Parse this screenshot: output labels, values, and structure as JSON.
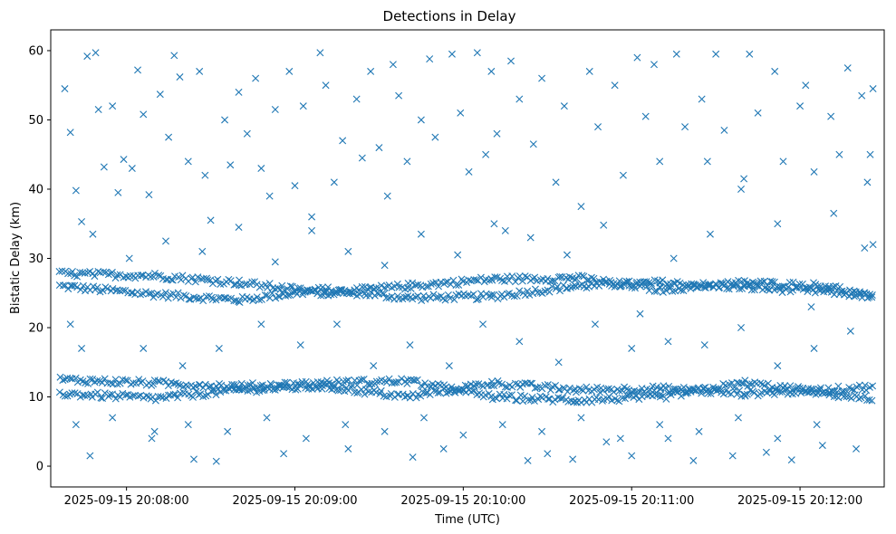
{
  "chart_data": {
    "type": "scatter",
    "title": "Detections in Delay",
    "xlabel": "Time (UTC)",
    "ylabel": "Bistatic Delay (km)",
    "marker": "x",
    "color": "#1f77b4",
    "grid": false,
    "xlim": [
      "2025-09-15 20:07:33",
      "2025-09-15 20:12:30"
    ],
    "ylim": [
      -3,
      63
    ],
    "x_ticks": [
      "2025-09-15 20:08:00",
      "2025-09-15 20:09:00",
      "2025-09-15 20:10:00",
      "2025-09-15 20:11:00",
      "2025-09-15 20:12:00"
    ],
    "y_ticks": [
      0,
      10,
      20,
      30,
      40,
      50,
      60
    ],
    "series": [
      {
        "points_note": "",
        "tracks": [
          {
            "x": [
              "2025-09-15 20:07:36",
              "2025-09-15 20:08:10",
              "2025-09-15 20:08:40",
              "2025-09-15 20:09:10",
              "2025-09-15 20:09:40",
              "2025-09-15 20:10:10",
              "2025-09-15 20:10:40",
              "2025-09-15 20:11:10",
              "2025-09-15 20:11:40",
              "2025-09-15 20:12:10",
              "2025-09-15 20:12:26"
            ],
            "y": [
              26.0,
              24.8,
              24.0,
              25.5,
              24.3,
              24.5,
              26.0,
              26.5,
              25.8,
              25.2,
              24.5
            ]
          },
          {
            "x": [
              "2025-09-15 20:07:36",
              "2025-09-15 20:08:10",
              "2025-09-15 20:08:40",
              "2025-09-15 20:09:10",
              "2025-09-15 20:09:40",
              "2025-09-15 20:10:10",
              "2025-09-15 20:10:40",
              "2025-09-15 20:11:10",
              "2025-09-15 20:11:40",
              "2025-09-15 20:12:10",
              "2025-09-15 20:12:26"
            ],
            "y": [
              27.8,
              27.5,
              26.5,
              25.0,
              26.0,
              27.0,
              27.2,
              25.5,
              26.5,
              26.0,
              24.2
            ]
          },
          {
            "x": [
              "2025-09-15 20:07:36",
              "2025-09-15 20:08:10",
              "2025-09-15 20:08:40",
              "2025-09-15 20:09:10",
              "2025-09-15 20:09:40",
              "2025-09-15 20:10:10",
              "2025-09-15 20:10:40",
              "2025-09-15 20:11:10",
              "2025-09-15 20:11:40",
              "2025-09-15 20:12:10",
              "2025-09-15 20:12:26"
            ],
            "y": [
              10.5,
              9.8,
              11.0,
              11.5,
              10.0,
              12.0,
              11.0,
              11.2,
              10.5,
              11.0,
              11.5
            ]
          },
          {
            "x": [
              "2025-09-15 20:07:36",
              "2025-09-15 20:08:10",
              "2025-09-15 20:08:40",
              "2025-09-15 20:09:10",
              "2025-09-15 20:09:40",
              "2025-09-15 20:10:10",
              "2025-09-15 20:10:40",
              "2025-09-15 20:11:10",
              "2025-09-15 20:11:40",
              "2025-09-15 20:12:10",
              "2025-09-15 20:12:26"
            ],
            "y": [
              12.5,
              12.0,
              11.5,
              12.0,
              12.3,
              10.0,
              9.5,
              10.0,
              12.0,
              10.5,
              9.5
            ]
          }
        ],
        "scatter_points": [
          [
            "2025-09-15 20:07:38",
            54.5
          ],
          [
            "2025-09-15 20:07:40",
            48.2
          ],
          [
            "2025-09-15 20:07:42",
            39.8
          ],
          [
            "2025-09-15 20:07:44",
            35.3
          ],
          [
            "2025-09-15 20:07:46",
            59.2
          ],
          [
            "2025-09-15 20:07:47",
            1.5
          ],
          [
            "2025-09-15 20:07:49",
            59.7
          ],
          [
            "2025-09-15 20:07:50",
            51.5
          ],
          [
            "2025-09-15 20:07:52",
            43.2
          ],
          [
            "2025-09-15 20:07:55",
            52.0
          ],
          [
            "2025-09-15 20:07:57",
            39.5
          ],
          [
            "2025-09-15 20:07:59",
            44.3
          ],
          [
            "2025-09-15 20:08:02",
            43.0
          ],
          [
            "2025-09-15 20:08:04",
            57.2
          ],
          [
            "2025-09-15 20:08:06",
            50.8
          ],
          [
            "2025-09-15 20:08:08",
            39.2
          ],
          [
            "2025-09-15 20:08:10",
            5.0
          ],
          [
            "2025-09-15 20:08:12",
            53.7
          ],
          [
            "2025-09-15 20:08:15",
            47.5
          ],
          [
            "2025-09-15 20:08:17",
            59.3
          ],
          [
            "2025-09-15 20:08:19",
            56.2
          ],
          [
            "2025-09-15 20:08:22",
            44.0
          ],
          [
            "2025-09-15 20:08:24",
            1.0
          ],
          [
            "2025-09-15 20:08:26",
            57.0
          ],
          [
            "2025-09-15 20:08:28",
            42.0
          ],
          [
            "2025-09-15 20:08:30",
            35.5
          ],
          [
            "2025-09-15 20:08:32",
            0.7
          ],
          [
            "2025-09-15 20:08:35",
            50.0
          ],
          [
            "2025-09-15 20:08:37",
            43.5
          ],
          [
            "2025-09-15 20:08:40",
            54.0
          ],
          [
            "2025-09-15 20:08:43",
            48.0
          ],
          [
            "2025-09-15 20:08:46",
            56.0
          ],
          [
            "2025-09-15 20:08:48",
            43.0
          ],
          [
            "2025-09-15 20:08:51",
            39.0
          ],
          [
            "2025-09-15 20:08:53",
            51.5
          ],
          [
            "2025-09-15 20:08:56",
            1.8
          ],
          [
            "2025-09-15 20:08:58",
            57.0
          ],
          [
            "2025-09-15 20:09:00",
            40.5
          ],
          [
            "2025-09-15 20:09:03",
            52.0
          ],
          [
            "2025-09-15 20:09:06",
            34.0
          ],
          [
            "2025-09-15 20:09:09",
            59.7
          ],
          [
            "2025-09-15 20:09:11",
            55.0
          ],
          [
            "2025-09-15 20:09:14",
            41.0
          ],
          [
            "2025-09-15 20:09:17",
            47.0
          ],
          [
            "2025-09-15 20:09:19",
            2.5
          ],
          [
            "2025-09-15 20:09:22",
            53.0
          ],
          [
            "2025-09-15 20:09:24",
            44.5
          ],
          [
            "2025-09-15 20:09:27",
            57.0
          ],
          [
            "2025-09-15 20:09:30",
            46.0
          ],
          [
            "2025-09-15 20:09:33",
            39.0
          ],
          [
            "2025-09-15 20:09:35",
            58.0
          ],
          [
            "2025-09-15 20:09:37",
            53.5
          ],
          [
            "2025-09-15 20:09:40",
            44.0
          ],
          [
            "2025-09-15 20:09:42",
            1.3
          ],
          [
            "2025-09-15 20:09:45",
            50.0
          ],
          [
            "2025-09-15 20:09:48",
            58.8
          ],
          [
            "2025-09-15 20:09:50",
            47.5
          ],
          [
            "2025-09-15 20:09:53",
            2.5
          ],
          [
            "2025-09-15 20:09:56",
            59.5
          ],
          [
            "2025-09-15 20:09:59",
            51.0
          ],
          [
            "2025-09-15 20:10:02",
            42.5
          ],
          [
            "2025-09-15 20:10:05",
            59.7
          ],
          [
            "2025-09-15 20:10:08",
            45.0
          ],
          [
            "2025-09-15 20:10:10",
            57.0
          ],
          [
            "2025-09-15 20:10:12",
            48.0
          ],
          [
            "2025-09-15 20:10:15",
            34.0
          ],
          [
            "2025-09-15 20:10:17",
            58.5
          ],
          [
            "2025-09-15 20:10:20",
            53.0
          ],
          [
            "2025-09-15 20:10:23",
            0.8
          ],
          [
            "2025-09-15 20:10:25",
            46.5
          ],
          [
            "2025-09-15 20:10:28",
            56.0
          ],
          [
            "2025-09-15 20:10:30",
            1.8
          ],
          [
            "2025-09-15 20:10:33",
            41.0
          ],
          [
            "2025-09-15 20:10:36",
            52.0
          ],
          [
            "2025-09-15 20:10:39",
            1.0
          ],
          [
            "2025-09-15 20:10:42",
            37.5
          ],
          [
            "2025-09-15 20:10:45",
            57.0
          ],
          [
            "2025-09-15 20:10:48",
            49.0
          ],
          [
            "2025-09-15 20:10:51",
            3.5
          ],
          [
            "2025-09-15 20:10:54",
            55.0
          ],
          [
            "2025-09-15 20:10:57",
            42.0
          ],
          [
            "2025-09-15 20:11:00",
            1.5
          ],
          [
            "2025-09-15 20:11:02",
            59.0
          ],
          [
            "2025-09-15 20:11:05",
            50.5
          ],
          [
            "2025-09-15 20:11:08",
            58.0
          ],
          [
            "2025-09-15 20:11:10",
            44.0
          ],
          [
            "2025-09-15 20:11:13",
            4.0
          ],
          [
            "2025-09-15 20:11:16",
            59.5
          ],
          [
            "2025-09-15 20:11:19",
            49.0
          ],
          [
            "2025-09-15 20:11:22",
            0.8
          ],
          [
            "2025-09-15 20:11:25",
            53.0
          ],
          [
            "2025-09-15 20:11:27",
            44.0
          ],
          [
            "2025-09-15 20:11:30",
            59.5
          ],
          [
            "2025-09-15 20:11:33",
            48.5
          ],
          [
            "2025-09-15 20:11:36",
            1.5
          ],
          [
            "2025-09-15 20:11:39",
            40.0
          ],
          [
            "2025-09-15 20:11:42",
            59.5
          ],
          [
            "2025-09-15 20:11:45",
            51.0
          ],
          [
            "2025-09-15 20:11:48",
            2.0
          ],
          [
            "2025-09-15 20:11:51",
            57.0
          ],
          [
            "2025-09-15 20:11:54",
            44.0
          ],
          [
            "2025-09-15 20:11:57",
            0.9
          ],
          [
            "2025-09-15 20:12:00",
            52.0
          ],
          [
            "2025-09-15 20:12:02",
            55.0
          ],
          [
            "2025-09-15 20:12:05",
            42.5
          ],
          [
            "2025-09-15 20:12:08",
            3.0
          ],
          [
            "2025-09-15 20:12:11",
            50.5
          ],
          [
            "2025-09-15 20:12:14",
            45.0
          ],
          [
            "2025-09-15 20:12:17",
            57.5
          ],
          [
            "2025-09-15 20:12:20",
            2.5
          ],
          [
            "2025-09-15 20:12:22",
            53.5
          ],
          [
            "2025-09-15 20:12:24",
            41.0
          ],
          [
            "2025-09-15 20:12:25",
            45.0
          ],
          [
            "2025-09-15 20:12:26",
            32.0
          ],
          [
            "2025-09-15 20:12:26",
            54.5
          ],
          [
            "2025-09-15 20:12:23",
            31.5
          ],
          [
            "2025-09-15 20:12:12",
            36.5
          ],
          [
            "2025-09-15 20:12:04",
            23.0
          ],
          [
            "2025-09-15 20:11:52",
            35.0
          ],
          [
            "2025-09-15 20:11:40",
            41.5
          ],
          [
            "2025-09-15 20:11:28",
            33.5
          ],
          [
            "2025-09-15 20:11:15",
            30.0
          ],
          [
            "2025-09-15 20:11:03",
            22.0
          ],
          [
            "2025-09-15 20:10:50",
            34.8
          ],
          [
            "2025-09-15 20:10:37",
            30.5
          ],
          [
            "2025-09-15 20:10:24",
            33.0
          ],
          [
            "2025-09-15 20:10:11",
            35.0
          ],
          [
            "2025-09-15 20:09:58",
            30.5
          ],
          [
            "2025-09-15 20:09:45",
            33.5
          ],
          [
            "2025-09-15 20:09:32",
            29.0
          ],
          [
            "2025-09-15 20:09:19",
            31.0
          ],
          [
            "2025-09-15 20:09:06",
            36.0
          ],
          [
            "2025-09-15 20:08:53",
            29.5
          ],
          [
            "2025-09-15 20:08:40",
            34.5
          ],
          [
            "2025-09-15 20:08:27",
            31.0
          ],
          [
            "2025-09-15 20:08:14",
            32.5
          ],
          [
            "2025-09-15 20:08:01",
            30.0
          ],
          [
            "2025-09-15 20:07:48",
            33.5
          ],
          [
            "2025-09-15 20:07:40",
            20.5
          ],
          [
            "2025-09-15 20:07:44",
            17.0
          ],
          [
            "2025-09-15 20:08:06",
            17.0
          ],
          [
            "2025-09-15 20:08:20",
            14.5
          ],
          [
            "2025-09-15 20:08:33",
            17.0
          ],
          [
            "2025-09-15 20:08:48",
            20.5
          ],
          [
            "2025-09-15 20:09:02",
            17.5
          ],
          [
            "2025-09-15 20:09:15",
            20.5
          ],
          [
            "2025-09-15 20:09:28",
            14.5
          ],
          [
            "2025-09-15 20:09:41",
            17.5
          ],
          [
            "2025-09-15 20:09:55",
            14.5
          ],
          [
            "2025-09-15 20:10:07",
            20.5
          ],
          [
            "2025-09-15 20:10:20",
            18.0
          ],
          [
            "2025-09-15 20:10:34",
            15.0
          ],
          [
            "2025-09-15 20:10:47",
            20.5
          ],
          [
            "2025-09-15 20:11:00",
            17.0
          ],
          [
            "2025-09-15 20:11:13",
            18.0
          ],
          [
            "2025-09-15 20:11:26",
            17.5
          ],
          [
            "2025-09-15 20:11:39",
            20.0
          ],
          [
            "2025-09-15 20:11:52",
            14.5
          ],
          [
            "2025-09-15 20:12:05",
            17.0
          ],
          [
            "2025-09-15 20:12:18",
            19.5
          ],
          [
            "2025-09-15 20:07:42",
            6.0
          ],
          [
            "2025-09-15 20:07:55",
            7.0
          ],
          [
            "2025-09-15 20:08:09",
            4.0
          ],
          [
            "2025-09-15 20:08:22",
            6.0
          ],
          [
            "2025-09-15 20:08:36",
            5.0
          ],
          [
            "2025-09-15 20:08:50",
            7.0
          ],
          [
            "2025-09-15 20:09:04",
            4.0
          ],
          [
            "2025-09-15 20:09:18",
            6.0
          ],
          [
            "2025-09-15 20:09:32",
            5.0
          ],
          [
            "2025-09-15 20:09:46",
            7.0
          ],
          [
            "2025-09-15 20:10:00",
            4.5
          ],
          [
            "2025-09-15 20:10:14",
            6.0
          ],
          [
            "2025-09-15 20:10:28",
            5.0
          ],
          [
            "2025-09-15 20:10:42",
            7.0
          ],
          [
            "2025-09-15 20:10:56",
            4.0
          ],
          [
            "2025-09-15 20:11:10",
            6.0
          ],
          [
            "2025-09-15 20:11:24",
            5.0
          ],
          [
            "2025-09-15 20:11:38",
            7.0
          ],
          [
            "2025-09-15 20:11:52",
            4.0
          ],
          [
            "2025-09-15 20:12:06",
            6.0
          ]
        ]
      }
    ]
  }
}
